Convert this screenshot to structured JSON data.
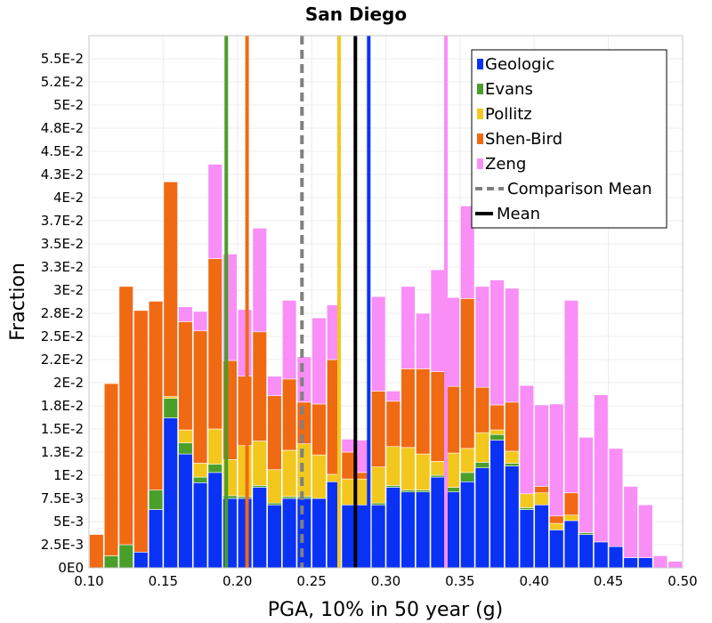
{
  "chart_data": {
    "type": "bar",
    "stacked": true,
    "title": "San Diego",
    "xlabel": "PGA, 10% in 50 year (g)",
    "ylabel": "Fraction",
    "xlim": [
      0.1,
      0.5
    ],
    "ylim": [
      0,
      0.0575
    ],
    "bin_width": 0.01,
    "x_ticks": [
      0.1,
      0.15,
      0.2,
      0.25,
      0.3,
      0.35,
      0.4,
      0.45,
      0.5
    ],
    "x_tick_labels": [
      "0.10",
      "0.15",
      "0.20",
      "0.25",
      "0.30",
      "0.35",
      "0.40",
      "0.45",
      "0.50"
    ],
    "y_ticks": [
      0,
      0.0025,
      0.005,
      0.0075,
      0.01,
      0.0125,
      0.015,
      0.0175,
      0.02,
      0.0225,
      0.025,
      0.0275,
      0.03,
      0.0325,
      0.035,
      0.0375,
      0.04,
      0.0425,
      0.045,
      0.0475,
      0.05,
      0.0525,
      0.055
    ],
    "y_tick_labels": [
      "0E0",
      "2.5E-3",
      "5E-3",
      "7.5E-3",
      "1E-2",
      "1.3E-2",
      "1.5E-2",
      "1.8E-2",
      "2E-2",
      "2.2E-2",
      "2.5E-2",
      "2.8E-2",
      "3E-2",
      "3.3E-2",
      "3.5E-2",
      "3.7E-2",
      "4E-2",
      "4.3E-2",
      "4.5E-2",
      "4.8E-2",
      "5E-2",
      "5.2E-2",
      "5.5E-2"
    ],
    "bins": [
      0.1,
      0.11,
      0.12,
      0.13,
      0.14,
      0.15,
      0.16,
      0.17,
      0.18,
      0.19,
      0.2,
      0.21,
      0.22,
      0.23,
      0.24,
      0.25,
      0.26,
      0.27,
      0.28,
      0.29,
      0.3,
      0.31,
      0.32,
      0.33,
      0.34,
      0.35,
      0.36,
      0.37,
      0.38,
      0.39,
      0.4,
      0.41,
      0.42,
      0.43,
      0.44,
      0.45,
      0.46,
      0.47,
      0.48,
      0.49
    ],
    "series": [
      {
        "name": "Geologic",
        "color": "#0a32f5",
        "values": [
          0,
          0,
          0,
          0.0017,
          0.0063,
          0.0162,
          0.0123,
          0.0092,
          0.0103,
          0.0075,
          0.0075,
          0.0087,
          0.0068,
          0.0075,
          0.0075,
          0.0075,
          0.0093,
          0.0068,
          0.0068,
          0.0068,
          0.0087,
          0.0082,
          0.0082,
          0.0098,
          0.0082,
          0.0093,
          0.0108,
          0.0138,
          0.011,
          0.0063,
          0.0068,
          0.0041,
          0.0051,
          0.0036,
          0.0028,
          0.0023,
          0.0011,
          0.0011,
          0,
          0
        ]
      },
      {
        "name": "Evans",
        "color": "#4a9e2a",
        "values": [
          0,
          0.0013,
          0.0025,
          0,
          0.0021,
          0.0021,
          0.0012,
          0.0006,
          0.0009,
          0.0003,
          0.0002,
          0.0002,
          0.0002,
          0.0002,
          0.0002,
          0,
          0,
          0,
          0,
          0.0002,
          0.0002,
          0.0002,
          0.0002,
          0.0002,
          0.0005,
          0.001,
          0.0006,
          0.0006,
          0.0003,
          0.0002,
          0,
          0,
          0,
          0.0002,
          0,
          0,
          0,
          0,
          0,
          0
        ]
      },
      {
        "name": "Pollitz",
        "color": "#f2c81e",
        "values": [
          0,
          0,
          0,
          0,
          0,
          0.0002,
          0.0014,
          0.0015,
          0.0038,
          0.0039,
          0.0055,
          0.0048,
          0.0036,
          0.005,
          0.0057,
          0.0047,
          0.0008,
          0.0028,
          0.0028,
          0.0039,
          0.0042,
          0.0046,
          0.0039,
          0.0015,
          0.0037,
          0.0026,
          0.0032,
          0.0005,
          0.0013,
          0.0015,
          0.0013,
          0.0007,
          0.0006,
          0,
          0,
          0,
          0,
          0,
          0,
          0
        ]
      },
      {
        "name": "Shen-Bird",
        "color": "#f06a14",
        "values": [
          0.0036,
          0.0186,
          0.0279,
          0.0261,
          0.0204,
          0.0232,
          0.0117,
          0.0143,
          0.0184,
          0.0107,
          0.0075,
          0.0118,
          0.008,
          0.0077,
          0.0045,
          0.0055,
          0.0124,
          0.0029,
          0.0007,
          0.0082,
          0.0049,
          0.0085,
          0.0092,
          0.0097,
          0.0072,
          0.0162,
          0.0049,
          0.0027,
          0.0053,
          0,
          0.0007,
          0.0008,
          0.0024,
          0,
          0,
          0,
          0,
          0,
          0,
          0
        ]
      },
      {
        "name": "Zeng",
        "color": "#f98ef7",
        "values": [
          0,
          0,
          0,
          0,
          0,
          0,
          0.0016,
          0.0021,
          0.0102,
          0.0115,
          0.0072,
          0.0112,
          0.0021,
          0.0085,
          0.0049,
          0.0093,
          0.0059,
          0.0014,
          0.0035,
          0.0102,
          0.0011,
          0.0089,
          0.006,
          0.011,
          0.0096,
          0.01,
          0.0109,
          0.0135,
          0.0123,
          0.0117,
          0.0088,
          0.0121,
          0.0208,
          0.0103,
          0.0159,
          0.0106,
          0.0077,
          0.0057,
          0.0013,
          0.0007
        ]
      }
    ],
    "vertical_lines": [
      {
        "name": "Evans",
        "x": 0.1925,
        "color": "#4a9e2a",
        "style": "solid",
        "in_legend": false
      },
      {
        "name": "Shen-Bird",
        "x": 0.2065,
        "color": "#f06a14",
        "style": "solid",
        "in_legend": false
      },
      {
        "name": "Comparison Mean",
        "x": 0.2435,
        "color": "#808080",
        "style": "dashed",
        "in_legend": true
      },
      {
        "name": "Pollitz",
        "x": 0.2685,
        "color": "#f2c81e",
        "style": "solid",
        "in_legend": false
      },
      {
        "name": "Mean",
        "x": 0.2795,
        "color": "#000000",
        "style": "solid",
        "in_legend": true
      },
      {
        "name": "Geologic",
        "x": 0.2885,
        "color": "#0a32f5",
        "style": "solid",
        "in_legend": false
      },
      {
        "name": "Zeng",
        "x": 0.3405,
        "color": "#f98ef7",
        "style": "solid",
        "in_legend": false
      }
    ],
    "legend": {
      "position": "top-right",
      "entries": [
        {
          "label": "Geologic",
          "color": "#0a32f5",
          "kind": "bar"
        },
        {
          "label": "Evans",
          "color": "#4a9e2a",
          "kind": "bar"
        },
        {
          "label": "Pollitz",
          "color": "#f2c81e",
          "kind": "bar"
        },
        {
          "label": "Shen-Bird",
          "color": "#f06a14",
          "kind": "bar"
        },
        {
          "label": "Zeng",
          "color": "#f98ef7",
          "kind": "bar"
        },
        {
          "label": "Comparison Mean",
          "color": "#808080",
          "kind": "dashed-line"
        },
        {
          "label": "Mean",
          "color": "#000000",
          "kind": "line"
        }
      ]
    },
    "grid": true
  }
}
